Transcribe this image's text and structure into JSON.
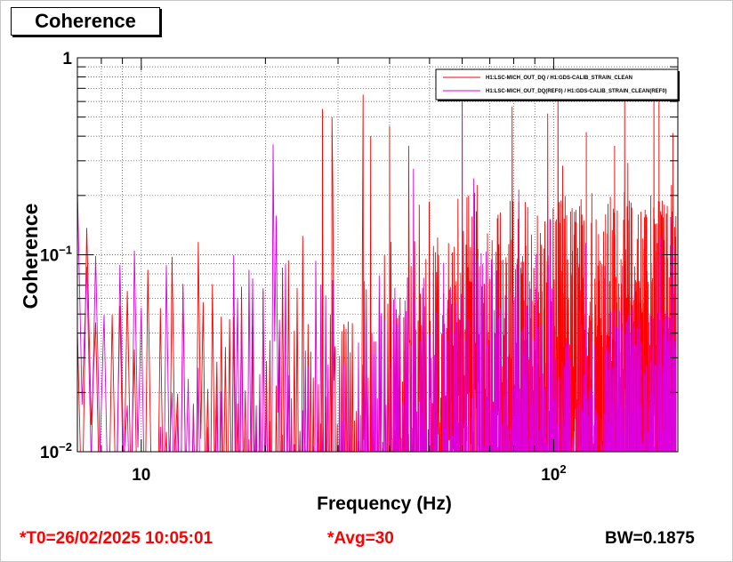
{
  "window": {
    "title": "Coherence"
  },
  "status": {
    "t0": "*T0=26/02/2025 10:05:01",
    "avg": "*Avg=30",
    "bw": "BW=0.1875"
  },
  "chart_data": {
    "type": "line",
    "title": "",
    "xlabel": "Frequency (Hz)",
    "ylabel": "Coherence",
    "xscale": "log",
    "yscale": "log",
    "xlim": [
      7.0,
      200.0
    ],
    "ylim": [
      0.01,
      1
    ],
    "grid": true,
    "legend_position": "top-right",
    "x_ticks": [
      {
        "value": 10,
        "label": "10"
      },
      {
        "value": 100,
        "label": "10^2"
      }
    ],
    "y_ticks": [
      {
        "value": 1,
        "label": "1"
      },
      {
        "value": 0.1,
        "label": "10^-1"
      },
      {
        "value": 0.01,
        "label": "10^-2"
      }
    ],
    "series": [
      {
        "name": "H1:LSC-MICH_OUT_DQ / H1:GDS-CALIB_STRAIN_CLEAN",
        "color": "#ff0000",
        "peaks": [
          {
            "x": 27.5,
            "y": 0.55
          },
          {
            "x": 29.0,
            "y": 0.5
          },
          {
            "x": 34.5,
            "y": 0.65
          },
          {
            "x": 36.0,
            "y": 0.4
          },
          {
            "x": 40.0,
            "y": 0.45
          },
          {
            "x": 60.0,
            "y": 0.7
          },
          {
            "x": 120.0,
            "y": 0.42
          },
          {
            "x": 180.0,
            "y": 0.7
          }
        ]
      },
      {
        "name": "H1:LSC-MICH_OUT_DQ(REF0) / H1:GDS-CALIB_STRAIN_CLEAN(REF0)",
        "color": "#dd00dd",
        "peaks": [
          {
            "x": 7.0,
            "y": 0.22
          },
          {
            "x": 60.0,
            "y": 0.7
          }
        ]
      }
    ]
  }
}
